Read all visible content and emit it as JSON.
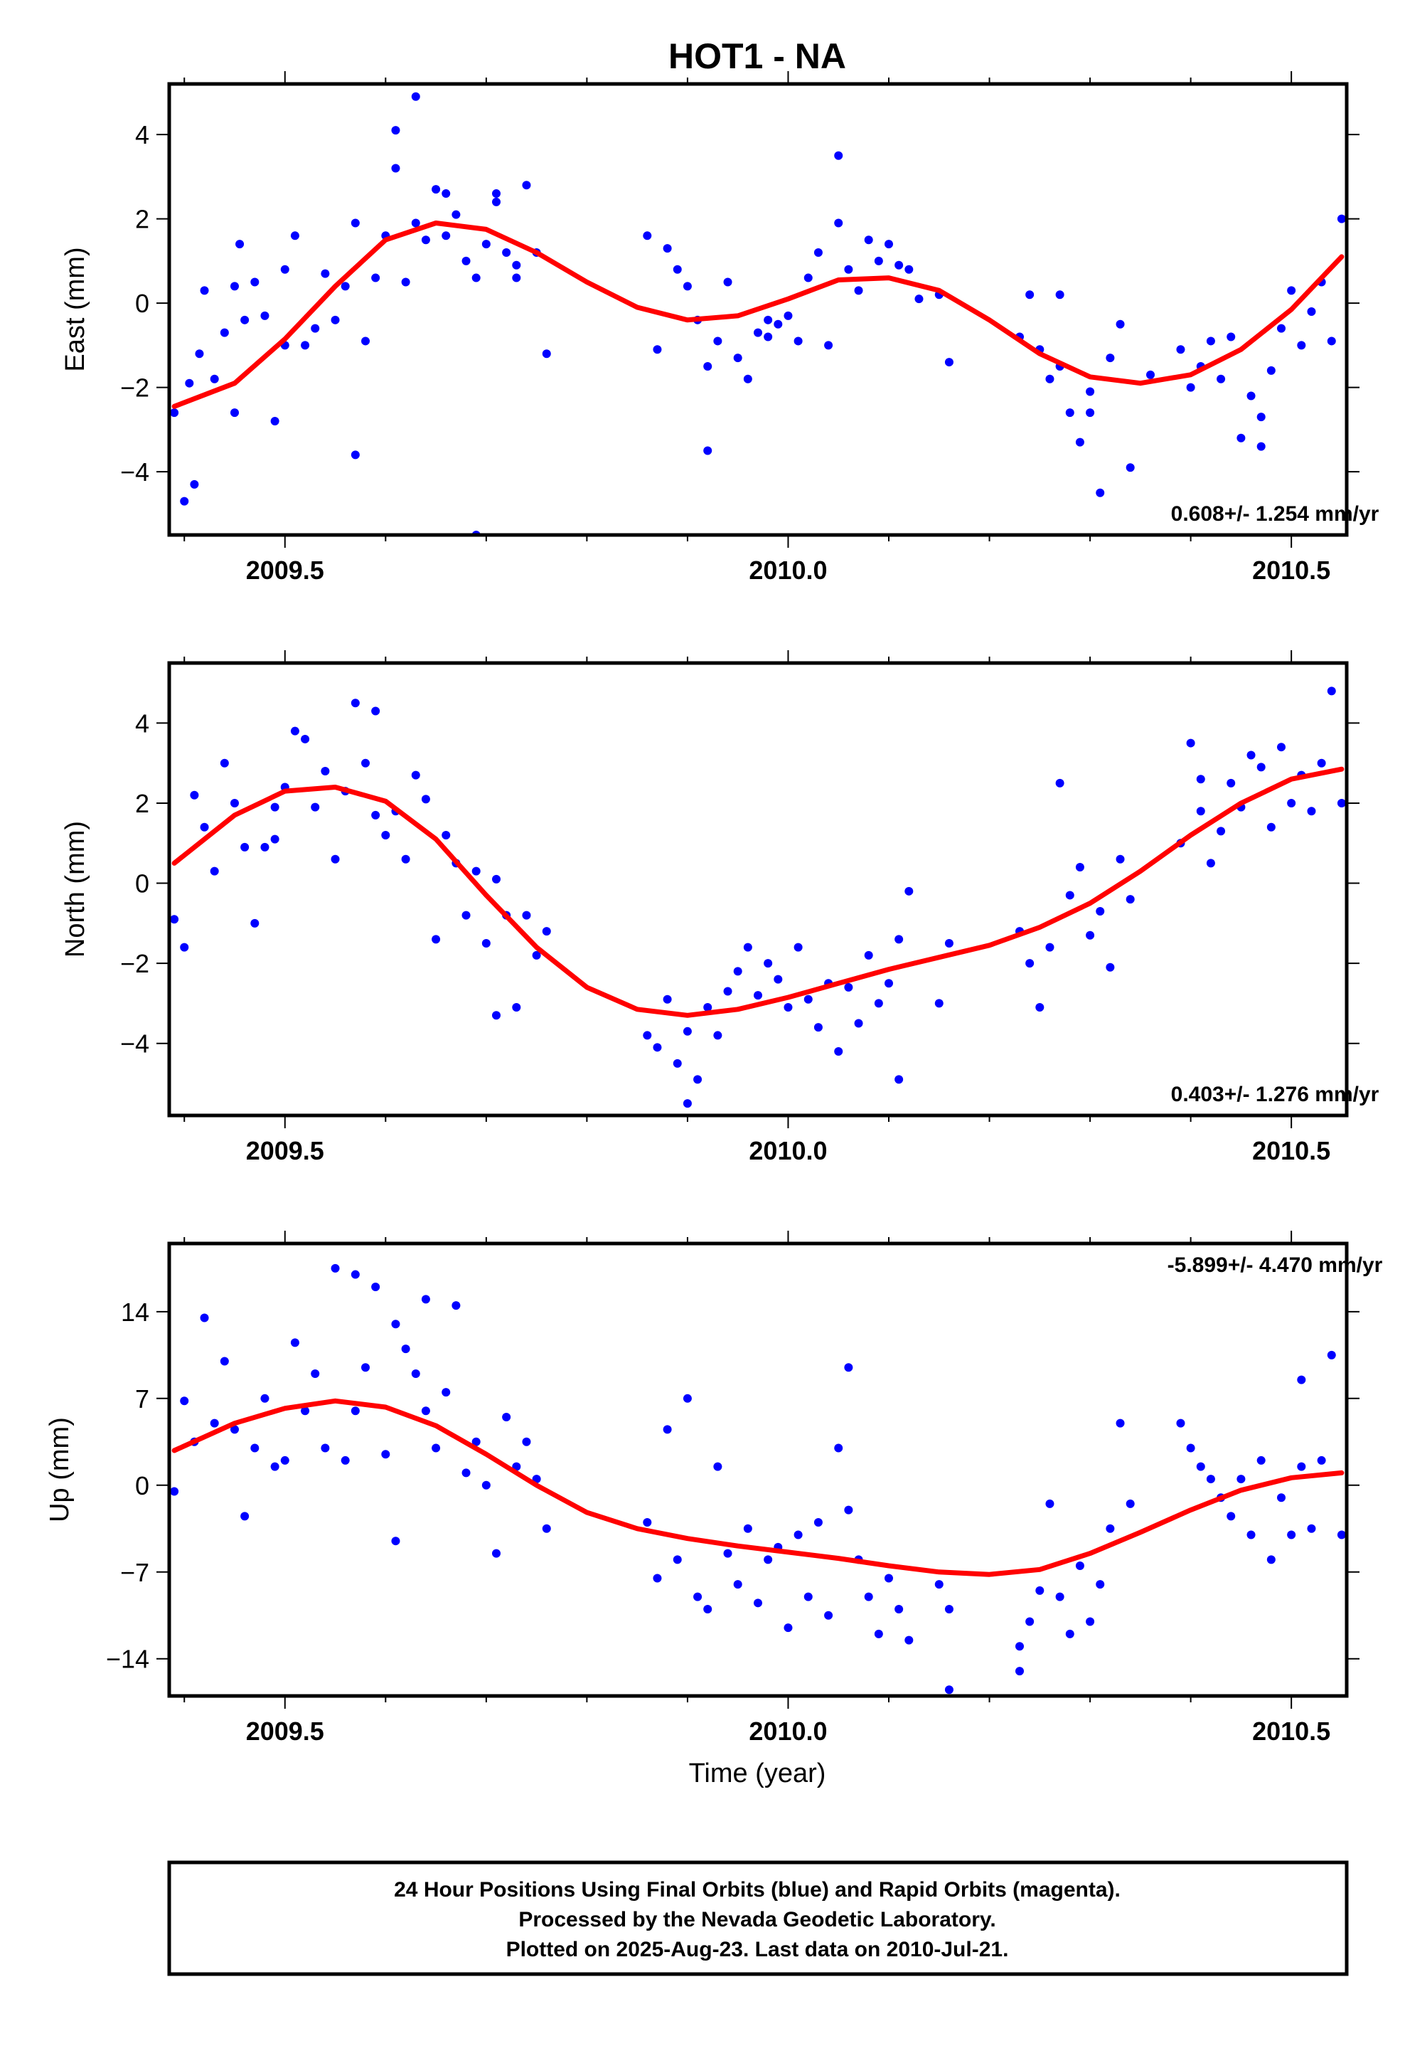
{
  "figure_title": "HOT1 - NA",
  "xlabel": "Time (year)",
  "footer": {
    "line1": "24 Hour Positions Using Final Orbits (blue) and Rapid Orbits (magenta).",
    "line2": "Processed by the Nevada Geodetic Laboratory.",
    "line3": "Plotted on 2025-Aug-23. Last data on 2010-Jul-21."
  },
  "colors": {
    "points": "#0000ff",
    "fit": "#ff0000",
    "frame": "#000000"
  },
  "chart_data": [
    {
      "type": "scatter",
      "title": "HOT1 - NA",
      "ylabel": "East (mm)",
      "xlabel": "",
      "xlim": [
        2009.385,
        2010.555
      ],
      "ylim": [
        -5.5,
        5.2
      ],
      "xticks": [
        2009.5,
        2010.0,
        2010.5
      ],
      "xtick_labels": [
        "2009.5",
        "2010.0",
        "2010.5"
      ],
      "yticks": [
        -4,
        -2,
        0,
        2,
        4
      ],
      "ytick_labels": [
        "−4",
        "−2",
        "0",
        "2",
        "4"
      ],
      "rate_text": "0.608+/- 1.254 mm/yr",
      "rate_position": "bottom-right",
      "series": [
        {
          "kind": "points",
          "x": [
            2009.39,
            2009.4,
            2009.405,
            2009.41,
            2009.415,
            2009.42,
            2009.43,
            2009.44,
            2009.45,
            2009.455,
            2009.46,
            2009.47,
            2009.48,
            2009.49,
            2009.5,
            2009.51,
            2009.52,
            2009.53,
            2009.54,
            2009.55,
            2009.56,
            2009.57,
            2009.58,
            2009.59,
            2009.6,
            2009.61,
            2009.62,
            2009.63,
            2009.64,
            2009.65,
            2009.66,
            2009.67,
            2009.68,
            2009.69,
            2009.7,
            2009.71,
            2009.72,
            2009.73,
            2009.74,
            2009.75,
            2009.76,
            2009.57,
            2009.63,
            2009.69,
            2009.73,
            2009.86,
            2009.87,
            2009.88,
            2009.89,
            2009.9,
            2009.91,
            2009.92,
            2009.93,
            2009.94,
            2009.95,
            2009.96,
            2009.97,
            2009.98,
            2009.99,
            2010.0,
            2010.01,
            2010.02,
            2010.03,
            2010.04,
            2010.05,
            2010.06,
            2010.07,
            2010.08,
            2010.09,
            2010.1,
            2010.11,
            2010.12,
            2010.13,
            2010.15,
            2010.16,
            2010.23,
            2010.24,
            2010.25,
            2010.26,
            2010.27,
            2010.28,
            2010.29,
            2010.3,
            2010.31,
            2010.32,
            2010.33,
            2010.34,
            2010.39,
            2010.4,
            2010.41,
            2010.42,
            2010.43,
            2010.44,
            2010.45,
            2010.46,
            2010.47,
            2010.48,
            2010.49,
            2010.5,
            2010.51,
            2010.52,
            2010.53,
            2010.54,
            2010.55,
            2009.61,
            2010.05,
            2009.71,
            2009.92,
            2010.3,
            2010.47,
            2009.45,
            2009.5,
            2009.66,
            2009.98,
            2010.27,
            2010.36
          ],
          "y": [
            -2.6,
            -4.7,
            -1.9,
            -4.3,
            -1.2,
            0.3,
            -1.8,
            -0.7,
            0.4,
            1.4,
            -0.4,
            0.5,
            -0.3,
            -2.8,
            -1.0,
            1.6,
            -1.0,
            -0.6,
            0.7,
            -0.4,
            0.4,
            1.9,
            -0.9,
            0.6,
            1.6,
            3.2,
            0.5,
            1.9,
            1.5,
            2.7,
            1.6,
            2.1,
            1.0,
            0.6,
            1.4,
            2.4,
            1.2,
            0.9,
            2.8,
            1.2,
            -1.2,
            -3.6,
            4.9,
            -5.5,
            0.6,
            1.6,
            -1.1,
            1.3,
            0.8,
            0.4,
            -0.4,
            -1.5,
            -0.9,
            0.5,
            -1.3,
            -1.8,
            -0.7,
            -0.4,
            -0.5,
            -0.3,
            -0.9,
            0.6,
            1.2,
            -1.0,
            1.9,
            0.8,
            0.3,
            1.5,
            1.0,
            1.4,
            0.9,
            0.8,
            0.1,
            0.2,
            -1.4,
            -0.8,
            0.2,
            -1.1,
            -1.8,
            0.2,
            -2.6,
            -3.3,
            -2.1,
            -4.5,
            -1.3,
            -0.5,
            -3.9,
            -1.1,
            -2.0,
            -1.5,
            -0.9,
            -1.8,
            -0.8,
            -3.2,
            -2.2,
            -2.7,
            -1.6,
            -0.6,
            0.3,
            -1.0,
            -0.2,
            0.5,
            -0.9,
            2.0,
            4.1,
            3.5,
            2.6,
            -3.5,
            -2.6,
            -3.4,
            -2.6,
            0.8,
            2.6,
            -0.8,
            -1.5,
            -1.7
          ]
        },
        {
          "kind": "fit",
          "x": [
            2009.39,
            2009.45,
            2009.5,
            2009.55,
            2009.6,
            2009.65,
            2009.7,
            2009.75,
            2009.8,
            2009.85,
            2009.9,
            2009.95,
            2010.0,
            2010.05,
            2010.1,
            2010.15,
            2010.2,
            2010.25,
            2010.3,
            2010.35,
            2010.4,
            2010.45,
            2010.5,
            2010.55
          ],
          "y": [
            -2.45,
            -1.9,
            -0.85,
            0.4,
            1.5,
            1.9,
            1.75,
            1.2,
            0.5,
            -0.1,
            -0.4,
            -0.3,
            0.1,
            0.55,
            0.6,
            0.3,
            -0.4,
            -1.2,
            -1.75,
            -1.9,
            -1.7,
            -1.1,
            -0.15,
            1.1
          ]
        }
      ]
    },
    {
      "type": "scatter",
      "ylabel": "North (mm)",
      "xlabel": "",
      "xlim": [
        2009.385,
        2010.555
      ],
      "ylim": [
        -5.8,
        5.5
      ],
      "xticks": [
        2009.5,
        2010.0,
        2010.5
      ],
      "xtick_labels": [
        "2009.5",
        "2010.0",
        "2010.5"
      ],
      "yticks": [
        -4,
        -2,
        0,
        2,
        4
      ],
      "ytick_labels": [
        "−4",
        "−2",
        "0",
        "2",
        "4"
      ],
      "rate_text": "0.403+/- 1.276 mm/yr",
      "rate_position": "bottom-right",
      "series": [
        {
          "kind": "points",
          "x": [
            2009.39,
            2009.4,
            2009.41,
            2009.42,
            2009.43,
            2009.44,
            2009.45,
            2009.46,
            2009.47,
            2009.48,
            2009.49,
            2009.5,
            2009.51,
            2009.52,
            2009.53,
            2009.54,
            2009.55,
            2009.56,
            2009.57,
            2009.58,
            2009.59,
            2009.6,
            2009.61,
            2009.62,
            2009.63,
            2009.64,
            2009.65,
            2009.66,
            2009.67,
            2009.68,
            2009.69,
            2009.7,
            2009.71,
            2009.72,
            2009.73,
            2009.74,
            2009.75,
            2009.76,
            2009.86,
            2009.87,
            2009.88,
            2009.89,
            2009.9,
            2009.91,
            2009.92,
            2009.93,
            2009.94,
            2009.95,
            2009.96,
            2009.97,
            2009.98,
            2009.99,
            2010.0,
            2010.01,
            2010.02,
            2010.03,
            2010.04,
            2010.05,
            2010.06,
            2010.07,
            2010.08,
            2010.09,
            2010.1,
            2010.11,
            2010.12,
            2010.15,
            2010.16,
            2010.23,
            2010.24,
            2010.25,
            2010.26,
            2010.27,
            2010.28,
            2010.29,
            2010.3,
            2010.31,
            2010.32,
            2010.33,
            2010.34,
            2010.39,
            2010.4,
            2010.41,
            2010.42,
            2010.43,
            2010.44,
            2010.45,
            2010.46,
            2010.47,
            2010.48,
            2010.49,
            2010.5,
            2010.51,
            2010.52,
            2010.53,
            2010.54,
            2010.55,
            2009.59,
            2009.49,
            2010.11,
            2009.9,
            2009.71,
            2010.41
          ],
          "y": [
            -0.9,
            -1.6,
            2.2,
            1.4,
            0.3,
            3.0,
            2.0,
            0.9,
            -1.0,
            0.9,
            1.9,
            2.4,
            3.8,
            3.6,
            1.9,
            2.8,
            0.6,
            2.3,
            4.5,
            3.0,
            1.7,
            1.2,
            1.8,
            0.6,
            2.7,
            2.1,
            -1.4,
            1.2,
            0.5,
            -0.8,
            0.3,
            -1.5,
            0.1,
            -0.8,
            -3.1,
            -0.8,
            -1.8,
            -1.2,
            -3.8,
            -4.1,
            -2.9,
            -4.5,
            -3.7,
            -4.9,
            -3.1,
            -3.8,
            -2.7,
            -2.2,
            -1.6,
            -2.8,
            -2.0,
            -2.4,
            -3.1,
            -1.6,
            -2.9,
            -3.6,
            -2.5,
            -4.2,
            -2.6,
            -3.5,
            -1.8,
            -3.0,
            -2.5,
            -1.4,
            -0.2,
            -3.0,
            -1.5,
            -1.2,
            -2.0,
            -3.1,
            -1.6,
            2.5,
            -0.3,
            0.4,
            -1.3,
            -0.7,
            -2.1,
            0.6,
            -0.4,
            1.0,
            3.5,
            1.8,
            0.5,
            1.3,
            2.5,
            1.9,
            3.2,
            2.9,
            1.4,
            3.4,
            2.0,
            2.7,
            1.8,
            3.0,
            4.8,
            2.0,
            4.3,
            1.1,
            -4.9,
            -5.5,
            -3.3,
            2.6
          ]
        },
        {
          "kind": "fit",
          "x": [
            2009.39,
            2009.45,
            2009.5,
            2009.55,
            2009.6,
            2009.65,
            2009.7,
            2009.75,
            2009.8,
            2009.85,
            2009.9,
            2009.95,
            2010.0,
            2010.05,
            2010.1,
            2010.15,
            2010.2,
            2010.25,
            2010.3,
            2010.35,
            2010.4,
            2010.45,
            2010.5,
            2010.55
          ],
          "y": [
            0.5,
            1.7,
            2.3,
            2.4,
            2.05,
            1.1,
            -0.3,
            -1.6,
            -2.6,
            -3.15,
            -3.3,
            -3.15,
            -2.85,
            -2.5,
            -2.15,
            -1.85,
            -1.55,
            -1.1,
            -0.5,
            0.3,
            1.2,
            2.0,
            2.6,
            2.85
          ]
        }
      ]
    },
    {
      "type": "scatter",
      "ylabel": "Up (mm)",
      "xlabel": "Time (year)",
      "xlim": [
        2009.385,
        2010.555
      ],
      "ylim": [
        -17,
        19.5
      ],
      "xticks": [
        2009.5,
        2010.0,
        2010.5
      ],
      "xtick_labels": [
        "2009.5",
        "2010.0",
        "2010.5"
      ],
      "yticks": [
        -14,
        -7,
        0,
        7,
        14
      ],
      "ytick_labels": [
        "−14",
        "−7",
        "0",
        "7",
        "14"
      ],
      "rate_text": "-5.899+/- 4.470 mm/yr",
      "rate_position": "top-right",
      "series": [
        {
          "kind": "points",
          "x": [
            2009.39,
            2009.4,
            2009.41,
            2009.42,
            2009.43,
            2009.44,
            2009.45,
            2009.46,
            2009.47,
            2009.48,
            2009.49,
            2009.5,
            2009.51,
            2009.52,
            2009.53,
            2009.54,
            2009.55,
            2009.56,
            2009.57,
            2009.58,
            2009.59,
            2009.6,
            2009.61,
            2009.62,
            2009.63,
            2009.64,
            2009.65,
            2009.66,
            2009.67,
            2009.68,
            2009.69,
            2009.7,
            2009.71,
            2009.72,
            2009.73,
            2009.74,
            2009.75,
            2009.76,
            2009.86,
            2009.87,
            2009.88,
            2009.89,
            2009.9,
            2009.91,
            2009.92,
            2009.93,
            2009.94,
            2009.95,
            2009.96,
            2009.97,
            2009.98,
            2009.99,
            2010.0,
            2010.01,
            2010.02,
            2010.03,
            2010.04,
            2010.05,
            2010.06,
            2010.07,
            2010.08,
            2010.09,
            2010.1,
            2010.11,
            2010.12,
            2010.15,
            2010.16,
            2010.23,
            2010.24,
            2010.25,
            2010.26,
            2010.27,
            2010.28,
            2010.29,
            2010.3,
            2010.31,
            2010.32,
            2010.33,
            2010.34,
            2010.39,
            2010.4,
            2010.41,
            2010.42,
            2010.43,
            2010.44,
            2010.45,
            2010.46,
            2010.47,
            2010.48,
            2010.49,
            2010.5,
            2010.51,
            2010.52,
            2010.53,
            2010.54,
            2010.55,
            2009.61,
            2009.64,
            2009.57,
            2010.06,
            2010.16,
            2010.23,
            2010.51
          ],
          "y": [
            -0.5,
            6.8,
            3.5,
            13.5,
            5.0,
            10.0,
            4.5,
            -2.5,
            3.0,
            7.0,
            1.5,
            2.0,
            11.5,
            6.0,
            9.0,
            3.0,
            17.5,
            2.0,
            6.0,
            9.5,
            16.0,
            2.5,
            13.0,
            11.0,
            9.0,
            6.0,
            3.0,
            7.5,
            14.5,
            1.0,
            3.5,
            0.0,
            -5.5,
            5.5,
            1.5,
            3.5,
            0.5,
            -3.5,
            -3.0,
            -7.5,
            4.5,
            -6.0,
            7.0,
            -9.0,
            -10.0,
            1.5,
            -5.5,
            -8.0,
            -3.5,
            -9.5,
            -6.0,
            -5.0,
            -11.5,
            -4.0,
            -9.0,
            -3.0,
            -10.5,
            3.0,
            -2.0,
            -6.0,
            -9.0,
            -12.0,
            -7.5,
            -10.0,
            -12.5,
            -8.0,
            -10.0,
            -13.0,
            -11.0,
            -8.5,
            -1.5,
            -9.0,
            -12.0,
            -6.5,
            -11.0,
            -8.0,
            -3.5,
            5.0,
            -1.5,
            5.0,
            3.0,
            1.5,
            0.5,
            -1.0,
            -2.5,
            0.5,
            -4.0,
            2.0,
            -6.0,
            -1.0,
            -4.0,
            1.5,
            -3.5,
            2.0,
            10.5,
            -4.0,
            -4.5,
            15.0,
            17.0,
            9.5,
            -16.5,
            -15.0,
            8.5
          ]
        },
        {
          "kind": "fit",
          "x": [
            2009.39,
            2009.45,
            2009.5,
            2009.55,
            2009.6,
            2009.65,
            2009.7,
            2009.75,
            2009.8,
            2009.85,
            2009.9,
            2009.95,
            2010.0,
            2010.05,
            2010.1,
            2010.15,
            2010.2,
            2010.25,
            2010.3,
            2010.35,
            2010.4,
            2010.45,
            2010.5,
            2010.55
          ],
          "y": [
            2.8,
            5.0,
            6.2,
            6.8,
            6.3,
            4.8,
            2.5,
            0.0,
            -2.2,
            -3.5,
            -4.3,
            -4.9,
            -5.4,
            -5.9,
            -6.5,
            -7.0,
            -7.2,
            -6.8,
            -5.5,
            -3.8,
            -2.0,
            -0.4,
            0.6,
            1.0
          ]
        }
      ]
    }
  ]
}
